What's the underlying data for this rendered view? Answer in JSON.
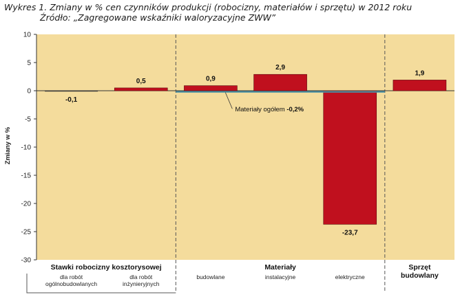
{
  "title": "Wykres 1. Zmiany w % cen czynników produkcji (robocizny, materiałów i sprzętu) w 2012 roku",
  "source": "Źródło: „Zagregowane wskaźniki waloryzacyjne ZWW”",
  "colors": {
    "plot_bg": "#f4dc9c",
    "bar": "#c0101e",
    "bar_edge": "#5a0a0e",
    "zero_bar": "#3a3a3a",
    "ref_line": "#4a90a4"
  },
  "chart_data": {
    "type": "bar",
    "ylabel": "Zmiany w %",
    "ylim": [
      -30,
      10
    ],
    "yticks": [
      10,
      5,
      0,
      -5,
      -10,
      -15,
      -20,
      -25,
      -30
    ],
    "categories": [
      "dla robót ogólnobudowlanych",
      "dla robót inżynieryjnych",
      "budowlane",
      "instalacyjne",
      "elektryczne",
      "Sprzęt budowlany"
    ],
    "values": [
      -0.1,
      0.5,
      0.9,
      2.9,
      -23.7,
      1.9
    ],
    "value_labels": [
      "-0,1",
      "0,5",
      "0,9",
      "2,9",
      "-23,7",
      "1,9"
    ],
    "groups": [
      {
        "label": "Stawki robocizny kosztorysowej",
        "subs": [
          "dla robót\nogólnobudowlanych",
          "dla robót\ninżynieryjnych"
        ]
      },
      {
        "label": "Materiały",
        "subs": [
          "budowlane",
          "instalacyjne",
          "elektryczne"
        ]
      },
      {
        "label": "Sprzęt\nbudowlany",
        "subs": []
      }
    ],
    "reference_line": {
      "value": -0.2,
      "label": "Materiały ogółem ",
      "label_bold": "-0,2%"
    },
    "grid": false
  }
}
